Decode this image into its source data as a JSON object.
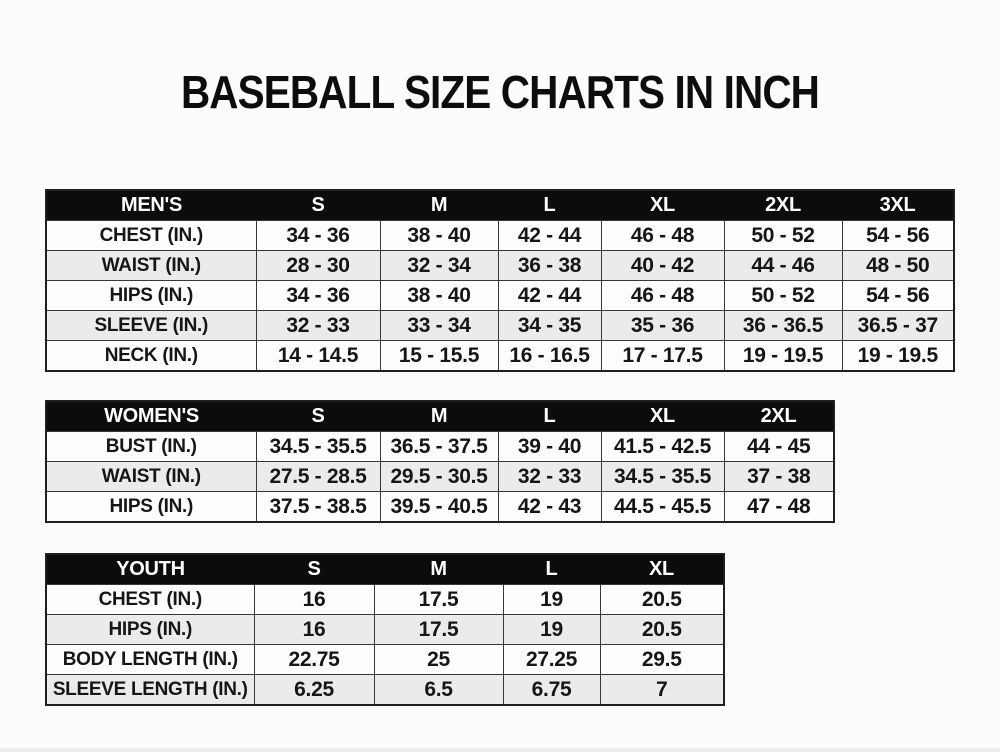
{
  "page": {
    "title": "BASEBALL SIZE CHARTS IN INCH"
  },
  "colors": {
    "page_bg": "#fcfcfc",
    "title_text": "#0d0d0d",
    "header_bg": "#0c0c0c",
    "header_text": "#ffffff",
    "row_white": "#fdfdfd",
    "row_gray": "#ebebeb",
    "border": "#383838",
    "cell_text": "#161616"
  },
  "tables": [
    {
      "id": "mens",
      "header": [
        "MEN'S",
        "S",
        "M",
        "L",
        "XL",
        "2XL",
        "3XL"
      ],
      "rows": [
        {
          "label": "CHEST (IN.)",
          "values": [
            "34 - 36",
            "38 - 40",
            "42 - 44",
            "46 - 48",
            "50 - 52",
            "54 - 56"
          ]
        },
        {
          "label": "WAIST (IN.)",
          "values": [
            "28 - 30",
            "32 - 34",
            "36 - 38",
            "40 - 42",
            "44 - 46",
            "48 - 50"
          ]
        },
        {
          "label": "HIPS (IN.)",
          "values": [
            "34 - 36",
            "38 - 40",
            "42 - 44",
            "46 - 48",
            "50 - 52",
            "54 - 56"
          ]
        },
        {
          "label": "SLEEVE (IN.)",
          "values": [
            "32 - 33",
            "33 - 34",
            "34 - 35",
            "35 - 36",
            "36 - 36.5",
            "36.5 - 37"
          ]
        },
        {
          "label": "NECK (IN.)",
          "values": [
            "14 - 14.5",
            "15 - 15.5",
            "16 - 16.5",
            "17 - 17.5",
            "19 - 19.5",
            "19 - 19.5"
          ]
        }
      ]
    },
    {
      "id": "womens",
      "header": [
        "WOMEN'S",
        "S",
        "M",
        "L",
        "XL",
        "2XL"
      ],
      "rows": [
        {
          "label": "BUST (IN.)",
          "values": [
            "34.5 - 35.5",
            "36.5 - 37.5",
            "39 - 40",
            "41.5 - 42.5",
            "44 - 45"
          ]
        },
        {
          "label": "WAIST (IN.)",
          "values": [
            "27.5 - 28.5",
            "29.5 - 30.5",
            "32 - 33",
            "34.5 - 35.5",
            "37 - 38"
          ]
        },
        {
          "label": "HIPS (IN.)",
          "values": [
            "37.5 - 38.5",
            "39.5 - 40.5",
            "42 - 43",
            "44.5 - 45.5",
            "47 - 48"
          ]
        }
      ]
    },
    {
      "id": "youth",
      "header": [
        "YOUTH",
        "S",
        "M",
        "L",
        "XL"
      ],
      "rows": [
        {
          "label": "CHEST (IN.)",
          "values": [
            "16",
            "17.5",
            "19",
            "20.5"
          ]
        },
        {
          "label": "HIPS (IN.)",
          "values": [
            "16",
            "17.5",
            "19",
            "20.5"
          ]
        },
        {
          "label": "BODY LENGTH (IN.)",
          "values": [
            "22.75",
            "25",
            "27.25",
            "29.5"
          ]
        },
        {
          "label": "SLEEVE LENGTH (IN.)",
          "values": [
            "6.25",
            "6.5",
            "6.75",
            "7"
          ]
        }
      ]
    }
  ]
}
